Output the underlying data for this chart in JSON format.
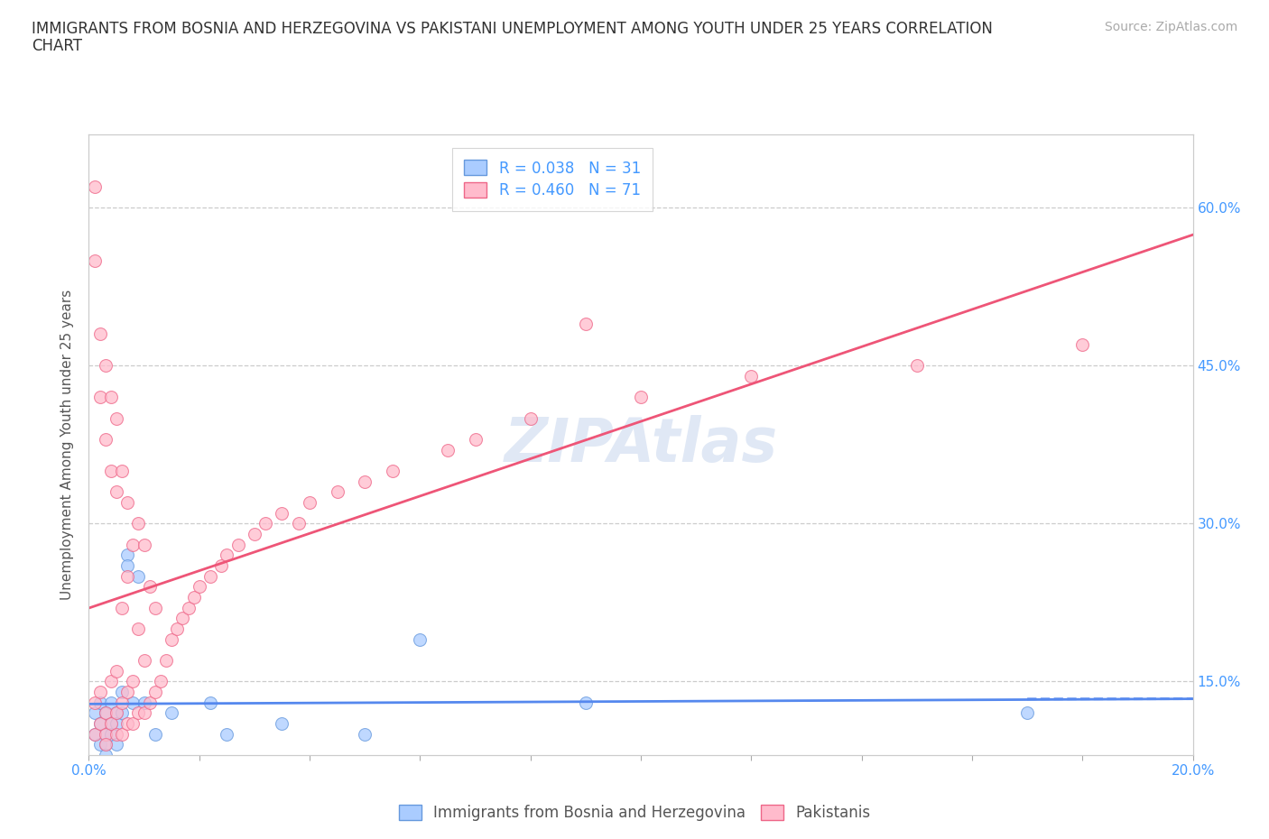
{
  "title_line1": "IMMIGRANTS FROM BOSNIA AND HERZEGOVINA VS PAKISTANI UNEMPLOYMENT AMONG YOUTH UNDER 25 YEARS CORRELATION",
  "title_line2": "CHART",
  "source_text": "Source: ZipAtlas.com",
  "ylabel": "Unemployment Among Youth under 25 years",
  "xlim": [
    0.0,
    0.2
  ],
  "ylim": [
    0.08,
    0.67
  ],
  "xticks": [
    0.0,
    0.02,
    0.04,
    0.06,
    0.08,
    0.1,
    0.12,
    0.14,
    0.16,
    0.18,
    0.2
  ],
  "xticklabels": [
    "0.0%",
    "",
    "",
    "",
    "",
    "",
    "",
    "",
    "",
    "",
    "20.0%"
  ],
  "yticks": [
    0.15,
    0.3,
    0.45,
    0.6
  ],
  "yticklabels": [
    "15.0%",
    "30.0%",
    "45.0%",
    "60.0%"
  ],
  "grid_color": "#cccccc",
  "watermark": "ZIPAtlas",
  "series_blue": {
    "label": "Immigrants from Bosnia and Herzegovina",
    "R": 0.038,
    "N": 31,
    "marker_facecolor": "#aaccff",
    "marker_edgecolor": "#6699dd",
    "x": [
      0.001,
      0.001,
      0.002,
      0.002,
      0.002,
      0.003,
      0.003,
      0.003,
      0.003,
      0.004,
      0.004,
      0.004,
      0.005,
      0.005,
      0.005,
      0.006,
      0.006,
      0.007,
      0.007,
      0.008,
      0.009,
      0.01,
      0.012,
      0.015,
      0.022,
      0.025,
      0.035,
      0.05,
      0.06,
      0.09,
      0.17
    ],
    "y": [
      0.12,
      0.1,
      0.11,
      0.13,
      0.09,
      0.12,
      0.1,
      0.09,
      0.08,
      0.11,
      0.13,
      0.1,
      0.12,
      0.11,
      0.09,
      0.14,
      0.12,
      0.27,
      0.26,
      0.13,
      0.25,
      0.13,
      0.1,
      0.12,
      0.13,
      0.1,
      0.11,
      0.1,
      0.19,
      0.13,
      0.12
    ]
  },
  "series_pink": {
    "label": "Pakistanis",
    "R": 0.46,
    "N": 71,
    "marker_facecolor": "#ffbbcc",
    "marker_edgecolor": "#ee6688",
    "x": [
      0.001,
      0.001,
      0.001,
      0.001,
      0.002,
      0.002,
      0.002,
      0.002,
      0.003,
      0.003,
      0.003,
      0.003,
      0.003,
      0.004,
      0.004,
      0.004,
      0.004,
      0.005,
      0.005,
      0.005,
      0.005,
      0.005,
      0.006,
      0.006,
      0.006,
      0.006,
      0.007,
      0.007,
      0.007,
      0.007,
      0.008,
      0.008,
      0.008,
      0.009,
      0.009,
      0.009,
      0.01,
      0.01,
      0.01,
      0.011,
      0.011,
      0.012,
      0.012,
      0.013,
      0.014,
      0.015,
      0.016,
      0.017,
      0.018,
      0.019,
      0.02,
      0.022,
      0.024,
      0.025,
      0.027,
      0.03,
      0.032,
      0.035,
      0.038,
      0.04,
      0.045,
      0.05,
      0.055,
      0.065,
      0.07,
      0.08,
      0.09,
      0.1,
      0.12,
      0.15,
      0.18
    ],
    "y": [
      0.1,
      0.13,
      0.55,
      0.62,
      0.11,
      0.14,
      0.48,
      0.42,
      0.1,
      0.12,
      0.38,
      0.45,
      0.09,
      0.11,
      0.15,
      0.35,
      0.42,
      0.1,
      0.12,
      0.16,
      0.33,
      0.4,
      0.1,
      0.13,
      0.22,
      0.35,
      0.11,
      0.14,
      0.25,
      0.32,
      0.11,
      0.15,
      0.28,
      0.12,
      0.2,
      0.3,
      0.12,
      0.17,
      0.28,
      0.13,
      0.24,
      0.14,
      0.22,
      0.15,
      0.17,
      0.19,
      0.2,
      0.21,
      0.22,
      0.23,
      0.24,
      0.25,
      0.26,
      0.27,
      0.28,
      0.29,
      0.3,
      0.31,
      0.3,
      0.32,
      0.33,
      0.34,
      0.35,
      0.37,
      0.38,
      0.4,
      0.49,
      0.42,
      0.44,
      0.45,
      0.47
    ]
  },
  "blue_line_color": "#5588ee",
  "pink_line_color": "#ee5577",
  "title_fontsize": 12,
  "axis_label_fontsize": 11,
  "tick_fontsize": 11,
  "legend_fontsize": 12,
  "source_fontsize": 10,
  "watermark_fontsize": 48,
  "watermark_color": "#e0e8f5",
  "background_color": "#ffffff",
  "axis_color": "#4499ff",
  "marker_size": 100
}
